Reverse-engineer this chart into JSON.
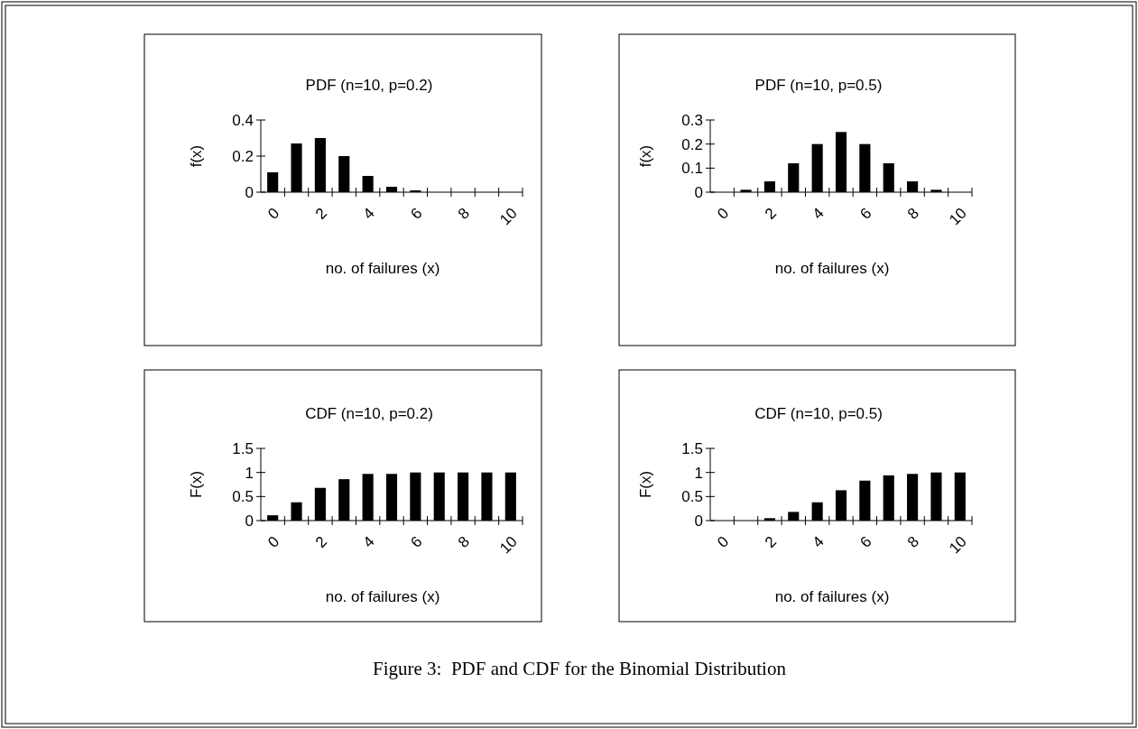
{
  "chart_data": [
    {
      "type": "bar",
      "title": "PDF (n=10, p=0.2)",
      "xlabel": "no. of failures (x)",
      "ylabel": "f(x)",
      "categories": [
        "0",
        null,
        "2",
        null,
        "4",
        null,
        "6",
        null,
        "8",
        null,
        "10"
      ],
      "values": [
        0.11,
        0.27,
        0.3,
        0.2,
        0.09,
        0.03,
        0.01,
        0,
        0,
        0,
        0
      ],
      "color": "#000000",
      "ylim": [
        0,
        0.4
      ],
      "yticks": [
        0,
        0.2,
        0.4
      ],
      "grid": false
    },
    {
      "type": "bar",
      "title": "PDF (n=10, p=0.5)",
      "xlabel": "no. of failures (x)",
      "ylabel": "f(x)",
      "categories": [
        "0",
        null,
        "2",
        null,
        "4",
        null,
        "6",
        null,
        "8",
        null,
        "10"
      ],
      "values": [
        0,
        0.01,
        0.045,
        0.12,
        0.2,
        0.25,
        0.2,
        0.12,
        0.045,
        0.01,
        0
      ],
      "color": "#000000",
      "ylim": [
        0,
        0.3
      ],
      "yticks": [
        0,
        0.1,
        0.2,
        0.3
      ],
      "grid": false
    },
    {
      "type": "bar",
      "title": "CDF (n=10, p=0.2)",
      "xlabel": "no. of failures (x)",
      "ylabel": "F(x)",
      "categories": [
        "0",
        null,
        "2",
        null,
        "4",
        null,
        "6",
        null,
        "8",
        null,
        "10"
      ],
      "values": [
        0.11,
        0.38,
        0.68,
        0.86,
        0.97,
        0.97,
        1,
        1,
        1,
        1,
        1
      ],
      "color": "#000000",
      "ylim": [
        0,
        1.5
      ],
      "yticks": [
        0,
        0.5,
        1,
        1.5
      ],
      "grid": false
    },
    {
      "type": "bar",
      "title": "CDF (n=10, p=0.5)",
      "xlabel": "no. of failures (x)",
      "ylabel": "F(x)",
      "categories": [
        "0",
        null,
        "2",
        null,
        "4",
        null,
        "6",
        null,
        "8",
        null,
        "10"
      ],
      "values": [
        0,
        0,
        0.05,
        0.18,
        0.38,
        0.63,
        0.83,
        0.94,
        0.97,
        1,
        1
      ],
      "color": "#000000",
      "ylim": [
        0,
        1.5
      ],
      "yticks": [
        0,
        0.5,
        1,
        1.5
      ],
      "grid": false,
      "annotations": [
        "Figure 3:  PDF and CDF for the Binomial Distribution"
      ]
    }
  ]
}
